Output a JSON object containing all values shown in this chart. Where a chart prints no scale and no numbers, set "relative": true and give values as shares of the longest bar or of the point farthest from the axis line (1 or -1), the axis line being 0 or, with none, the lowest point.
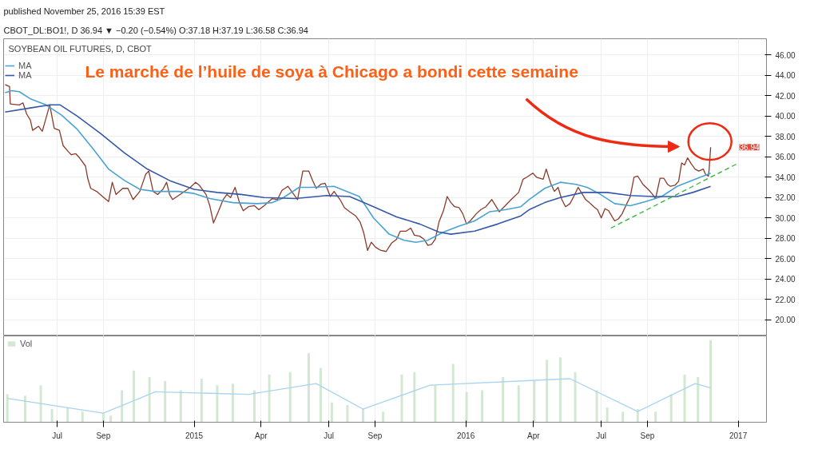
{
  "chart_data": [
    {
      "type": "line",
      "title": "Le marché de l’huile de soya à Chicago a bondi cette semaine",
      "subtitle": "SOYBEAN OIL FUTURES, D, CBOT",
      "annotations": [
        "published November 25, 2016 15:39 EST",
        "CBOT_DL:BO1!, D  36.94 ▼ −0.20 (−0.54%)  O:37.18  H:37.19  L:36.58  C:36.94",
        {
          "text": "36.94",
          "y": 36.94
        }
      ],
      "xlim": [
        "2014-04-20",
        "2017-02-08"
      ],
      "ylim": [
        18.4,
        47.6
      ],
      "yticks": [
        {
          "value": 20,
          "label": "20.00"
        },
        {
          "value": 22,
          "label": "22.00"
        },
        {
          "value": 24,
          "label": "24.00"
        },
        {
          "value": 26,
          "label": "26.00"
        },
        {
          "value": 28,
          "label": "28.00"
        },
        {
          "value": 30,
          "label": "30.00"
        },
        {
          "value": 32,
          "label": "32.00"
        },
        {
          "value": 34,
          "label": "34.00"
        },
        {
          "value": 36,
          "label": "36.00"
        },
        {
          "value": 38,
          "label": "38.00"
        },
        {
          "value": 40,
          "label": "40.00"
        },
        {
          "value": 42,
          "label": "42.00"
        },
        {
          "value": 44,
          "label": "44.00"
        },
        {
          "value": 46,
          "label": "46.00"
        }
      ],
      "grid": true,
      "legend": "top left",
      "marker": "none",
      "line_style": "solid",
      "tick_labels": "y",
      "series": [
        {
          "color": "#8b3a2a",
          "x": [
            "2014-04-22",
            "2014-04-28",
            "2014-04-29",
            "2014-05-11",
            "2014-05-16",
            "2014-05-21",
            "2014-05-26",
            "2014-05-29",
            "2014-06-06",
            "2014-06-11",
            "2014-06-16",
            "2014-06-21",
            "2014-06-27",
            "2014-07-04",
            "2014-07-09",
            "2014-07-16",
            "2014-07-20",
            "2014-07-26",
            "2014-07-31",
            "2014-08-08",
            "2014-08-11",
            "2014-08-15",
            "2014-08-23",
            "2014-08-31",
            "2014-09-08",
            "2014-09-13",
            "2014-09-18",
            "2014-09-27",
            "2014-10-04",
            "2014-10-11",
            "2014-10-20",
            "2014-10-28",
            "2014-11-01",
            "2014-11-07",
            "2014-11-13",
            "2014-11-20",
            "2014-11-25",
            "2014-11-29",
            "2014-12-03",
            "2014-12-13",
            "2014-12-27",
            "2015-01-03",
            "2015-01-08",
            "2015-01-17",
            "2015-01-22",
            "2015-01-27",
            "2015-02-03",
            "2015-02-09",
            "2015-02-14",
            "2015-02-19",
            "2015-02-25",
            "2015-03-03",
            "2015-03-08",
            "2015-03-15",
            "2015-03-23",
            "2015-03-29",
            "2015-04-05",
            "2015-04-16",
            "2015-04-23",
            "2015-04-29",
            "2015-05-07",
            "2015-05-14",
            "2015-05-20",
            "2015-05-27",
            "2015-06-04",
            "2015-06-09",
            "2015-06-14",
            "2015-06-20",
            "2015-06-26",
            "2015-07-03",
            "2015-07-08",
            "2015-07-16",
            "2015-07-22",
            "2015-07-29",
            "2015-08-06",
            "2015-08-12",
            "2015-08-17",
            "2015-08-22",
            "2015-08-27",
            "2015-09-02",
            "2015-09-09",
            "2015-09-16",
            "2015-09-23",
            "2015-09-30",
            "2015-10-05",
            "2015-10-13",
            "2015-10-19",
            "2015-10-24",
            "2015-10-31",
            "2015-11-06",
            "2015-11-11",
            "2015-11-16",
            "2015-11-21",
            "2015-11-26",
            "2015-12-02",
            "2015-12-07",
            "2015-12-12",
            "2015-12-17",
            "2015-12-23",
            "2015-12-28",
            "2016-01-02",
            "2016-01-07",
            "2016-01-15",
            "2016-01-21",
            "2016-01-28",
            "2016-02-05",
            "2016-02-10",
            "2016-02-15",
            "2016-02-23",
            "2016-03-02",
            "2016-03-12",
            "2016-03-18",
            "2016-03-23",
            "2016-03-31",
            "2016-04-05",
            "2016-04-14",
            "2016-04-18",
            "2016-04-24",
            "2016-04-29",
            "2016-05-04",
            "2016-05-09",
            "2016-05-14",
            "2016-05-20",
            "2016-05-25",
            "2016-05-31",
            "2016-06-05",
            "2016-06-10",
            "2016-06-15",
            "2016-06-21",
            "2016-06-26",
            "2016-07-01",
            "2016-07-06",
            "2016-07-11",
            "2016-07-19",
            "2016-07-24",
            "2016-07-29",
            "2016-08-03",
            "2016-08-09",
            "2016-08-14",
            "2016-08-19",
            "2016-08-26",
            "2016-09-02",
            "2016-09-07",
            "2016-09-12",
            "2016-09-18",
            "2016-09-23",
            "2016-09-28",
            "2016-10-02",
            "2016-10-08",
            "2016-10-13",
            "2016-10-17",
            "2016-10-21",
            "2016-10-25",
            "2016-10-30",
            "2016-11-04",
            "2016-11-09",
            "2016-11-15",
            "2016-11-18",
            "2016-11-22",
            "2016-11-23",
            "2016-11-25"
          ],
          "values": [
            43.1,
            42.9,
            41.2,
            41.1,
            41.3,
            40.2,
            39.6,
            38.6,
            39.0,
            38.5,
            39.8,
            41.1,
            38.8,
            38.6,
            37.1,
            36.5,
            36.2,
            36.3,
            35.9,
            35.1,
            33.9,
            32.9,
            32.6,
            32.1,
            31.6,
            33.5,
            32.3,
            32.9,
            32.9,
            31.8,
            32.6,
            34.3,
            34.6,
            32.6,
            32.3,
            32.8,
            33.5,
            32.3,
            31.8,
            32.3,
            33.0,
            33.5,
            33.2,
            32.3,
            31.2,
            29.5,
            30.7,
            31.8,
            32.3,
            32.0,
            33.0,
            31.5,
            30.7,
            31.1,
            31.2,
            30.8,
            31.2,
            31.9,
            31.8,
            32.7,
            33.1,
            32.4,
            31.8,
            34.6,
            34.6,
            33.7,
            32.9,
            33.3,
            33.4,
            32.1,
            32.6,
            31.8,
            31.0,
            30.6,
            30.2,
            29.6,
            28.5,
            26.8,
            27.6,
            27.1,
            26.8,
            26.7,
            27.5,
            27.9,
            28.7,
            28.7,
            29.0,
            28.3,
            28.2,
            27.9,
            27.3,
            27.4,
            27.9,
            29.6,
            30.7,
            32.1,
            31.5,
            31.1,
            31.0,
            30.4,
            29.4,
            29.7,
            30.4,
            30.8,
            31.1,
            31.8,
            31.2,
            30.6,
            31.2,
            31.8,
            32.5,
            33.8,
            34.0,
            34.4,
            34.0,
            33.8,
            34.8,
            33.4,
            32.6,
            33.0,
            31.8,
            31.1,
            31.4,
            32.1,
            33.0,
            32.4,
            31.8,
            31.5,
            31.1,
            30.8,
            30.0,
            30.9,
            30.7,
            29.7,
            29.9,
            30.4,
            31.2,
            32.1,
            34.0,
            34.1,
            33.3,
            32.8,
            32.4,
            31.9,
            33.9,
            33.9,
            33.3,
            33.1,
            33.2,
            33.6,
            35.4,
            35.2,
            35.9,
            35.3,
            34.8,
            34.6,
            34.8,
            34.3,
            34.1,
            34.8,
            36.94
          ]
        },
        {
          "name": "MA",
          "color": "#4ba3d3",
          "x": [
            "2014-04-22",
            "2014-05-01",
            "2014-05-11",
            "2014-05-26",
            "2014-06-16",
            "2014-07-07",
            "2014-07-28",
            "2014-08-18",
            "2014-09-08",
            "2014-09-29",
            "2014-10-20",
            "2014-11-10",
            "2014-12-11",
            "2015-01-01",
            "2015-01-22",
            "2015-02-22",
            "2015-03-26",
            "2015-04-16",
            "2015-04-29",
            "2015-05-22",
            "2015-06-07",
            "2015-07-08",
            "2015-08-11",
            "2015-08-30",
            "2015-09-20",
            "2015-10-10",
            "2015-10-26",
            "2015-11-11",
            "2015-12-02",
            "2015-12-23",
            "2016-01-13",
            "2016-02-02",
            "2016-02-23",
            "2016-03-15",
            "2016-03-26",
            "2016-04-16",
            "2016-05-07",
            "2016-05-28",
            "2016-06-12",
            "2016-06-28",
            "2016-07-19",
            "2016-08-09",
            "2016-08-30",
            "2016-09-20",
            "2016-10-11",
            "2016-11-01",
            "2016-11-25"
          ],
          "values": [
            42.3,
            42.5,
            42.4,
            41.7,
            41.1,
            40.1,
            38.7,
            36.8,
            34.8,
            33.7,
            32.8,
            32.6,
            32.6,
            32.4,
            31.9,
            31.5,
            31.4,
            31.5,
            31.9,
            33.0,
            33.0,
            33.1,
            32.1,
            30.0,
            28.4,
            27.8,
            27.6,
            27.8,
            28.6,
            29.2,
            29.7,
            30.6,
            30.8,
            31.1,
            31.8,
            32.9,
            33.5,
            33.3,
            33.0,
            32.4,
            31.4,
            31.2,
            31.6,
            32.1,
            33.1,
            33.7,
            34.4
          ]
        },
        {
          "name": "MA",
          "color": "#3559a8",
          "x": [
            "2014-04-22",
            "2014-05-26",
            "2014-06-21",
            "2014-07-05",
            "2014-07-28",
            "2014-08-28",
            "2014-09-29",
            "2014-10-30",
            "2014-12-01",
            "2015-01-01",
            "2015-02-01",
            "2015-03-05",
            "2015-04-05",
            "2015-05-17",
            "2015-06-28",
            "2015-07-29",
            "2015-08-30",
            "2015-09-30",
            "2015-10-31",
            "2015-11-26",
            "2015-12-12",
            "2016-01-13",
            "2016-02-13",
            "2016-03-15",
            "2016-03-26",
            "2016-04-16",
            "2016-05-07",
            "2016-06-07",
            "2016-07-09",
            "2016-08-09",
            "2016-09-09",
            "2016-10-11",
            "2016-11-01",
            "2016-11-25"
          ],
          "values": [
            40.4,
            40.8,
            41.1,
            41.1,
            40.0,
            38.3,
            36.4,
            34.8,
            33.6,
            32.8,
            32.5,
            32.3,
            32.0,
            31.9,
            32.2,
            32.1,
            31.1,
            30.1,
            29.4,
            28.6,
            28.4,
            28.7,
            29.4,
            30.2,
            30.8,
            31.5,
            32.0,
            32.5,
            32.5,
            32.2,
            32.1,
            32.1,
            32.5,
            33.1
          ]
        },
        {
          "type": "line",
          "color": "#2db52d",
          "line_style": "dashed",
          "x": [
            "2016-07-14",
            "2016-12-30"
          ],
          "values": [
            29.0,
            35.3
          ]
        }
      ]
    },
    {
      "type": "bar",
      "relative": true,
      "grid": "x",
      "legend": "top left",
      "tick_labels": "x",
      "xlim": [
        "2014-04-20",
        "2017-02-08"
      ],
      "xticks": [
        {
          "value": "2014-07-01",
          "label": "Jul"
        },
        {
          "value": "2014-09-01",
          "label": "Sep"
        },
        {
          "value": "2015-01-01",
          "label": "2015"
        },
        {
          "value": "2015-04-01",
          "label": "Apr"
        },
        {
          "value": "2015-07-01",
          "label": "Jul"
        },
        {
          "value": "2015-09-01",
          "label": "Sep"
        },
        {
          "value": "2016-01-01",
          "label": "2016"
        },
        {
          "value": "2016-04-01",
          "label": "Apr"
        },
        {
          "value": "2016-07-01",
          "label": "Jul"
        },
        {
          "value": "2016-09-01",
          "label": "Sep"
        },
        {
          "value": "2017-01-01",
          "label": "2017"
        }
      ],
      "series": [
        {
          "name": "Vol",
          "color": "#d3e8d2",
          "x": [
            "2014-04-25",
            "2014-05-19",
            "2014-06-09",
            "2014-06-24",
            "2014-07-15",
            "2014-08-04",
            "2014-09-01",
            "2014-09-11",
            "2014-09-26",
            "2014-10-12",
            "2014-11-02",
            "2014-11-23",
            "2014-12-14",
            "2015-01-11",
            "2015-02-01",
            "2015-02-22",
            "2015-03-23",
            "2015-04-12",
            "2015-05-10",
            "2015-06-04",
            "2015-06-20",
            "2015-07-05",
            "2015-07-26",
            "2015-08-16",
            "2015-09-12",
            "2015-10-07",
            "2015-10-24",
            "2015-11-21",
            "2015-12-15",
            "2016-01-02",
            "2016-01-23",
            "2016-02-20",
            "2016-03-12",
            "2016-04-02",
            "2016-04-19",
            "2016-05-07",
            "2016-05-27",
            "2016-06-25",
            "2016-07-09",
            "2016-07-30",
            "2016-08-19",
            "2016-09-12",
            "2016-10-03",
            "2016-10-21",
            "2016-11-08",
            "2016-11-25"
          ],
          "values": [
            0.34,
            0.32,
            0.45,
            0.16,
            0.18,
            0.13,
            0.11,
            0.08,
            0.39,
            0.63,
            0.55,
            0.5,
            0.39,
            0.53,
            0.45,
            0.47,
            0.39,
            0.58,
            0.61,
            0.84,
            0.66,
            0.24,
            0.21,
            0.16,
            0.13,
            0.58,
            0.61,
            0.45,
            0.71,
            0.37,
            0.39,
            0.55,
            0.45,
            0.5,
            0.76,
            0.79,
            0.61,
            0.39,
            0.18,
            0.13,
            0.16,
            0.13,
            0.34,
            0.58,
            0.55,
            1.0
          ]
        },
        {
          "type": "line",
          "color": "#a8d4f0",
          "x": [
            "2014-04-25",
            "2014-09-01",
            "2014-11-10",
            "2015-03-15",
            "2015-06-14",
            "2015-08-16",
            "2015-11-14",
            "2016-05-20",
            "2016-08-19",
            "2016-11-04",
            "2016-11-25"
          ],
          "values": [
            0.29,
            0.11,
            0.37,
            0.34,
            0.47,
            0.16,
            0.45,
            0.53,
            0.13,
            0.47,
            0.42
          ]
        }
      ]
    }
  ]
}
